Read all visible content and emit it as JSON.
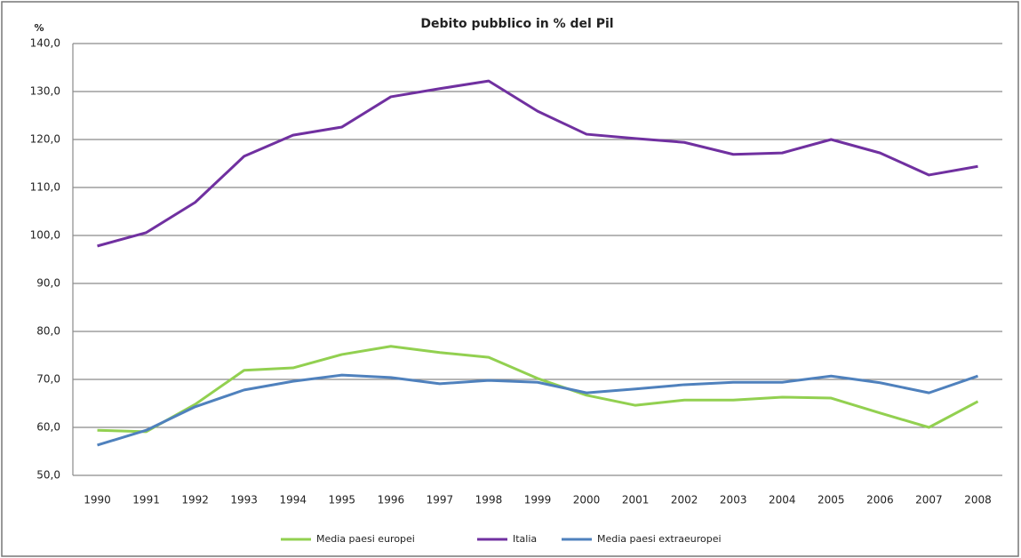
{
  "chart_data": {
    "type": "line",
    "title": "Debito pubblico in % del Pil",
    "y_label": "%",
    "categories": [
      "1990",
      "1991",
      "1992",
      "1993",
      "1994",
      "1995",
      "1996",
      "1997",
      "1998",
      "1999",
      "2000",
      "2001",
      "2002",
      "2003",
      "2004",
      "2005",
      "2006",
      "2007",
      "2008"
    ],
    "series": [
      {
        "name": "Media paesi europei",
        "color": "#92d050",
        "values": [
          59.4,
          59.1,
          64.8,
          71.9,
          72.4,
          75.2,
          76.9,
          75.6,
          74.6,
          70.2,
          66.7,
          64.6,
          65.7,
          65.7,
          66.3,
          66.1,
          63.0,
          60.0,
          65.4
        ]
      },
      {
        "name": "Italia",
        "color": "#7030a0",
        "values": [
          97.8,
          100.6,
          106.9,
          116.5,
          120.9,
          122.6,
          128.9,
          130.6,
          132.2,
          125.9,
          121.1,
          120.2,
          119.4,
          116.9,
          117.2,
          120.0,
          117.2,
          112.6,
          114.4
        ]
      },
      {
        "name": "Media paesi extraeuropei",
        "color": "#4f81bd",
        "values": [
          56.3,
          59.4,
          64.3,
          67.8,
          69.6,
          70.9,
          70.4,
          69.1,
          69.8,
          69.4,
          67.2,
          68.0,
          68.9,
          69.4,
          69.4,
          70.7,
          69.3,
          67.2,
          70.7
        ]
      }
    ],
    "ylim": [
      50,
      140
    ],
    "yticks": [
      {
        "value": 50,
        "label": "50,0"
      },
      {
        "value": 60,
        "label": "60,0"
      },
      {
        "value": 70,
        "label": "70,0"
      },
      {
        "value": 80,
        "label": "80,0"
      },
      {
        "value": 90,
        "label": "90,0"
      },
      {
        "value": 100,
        "label": "100,0"
      },
      {
        "value": 110,
        "label": "110,0"
      },
      {
        "value": 120,
        "label": "120,0"
      },
      {
        "value": 130,
        "label": "130,0"
      },
      {
        "value": 140,
        "label": "140,0"
      }
    ],
    "grid": true,
    "legend": "bottom"
  }
}
